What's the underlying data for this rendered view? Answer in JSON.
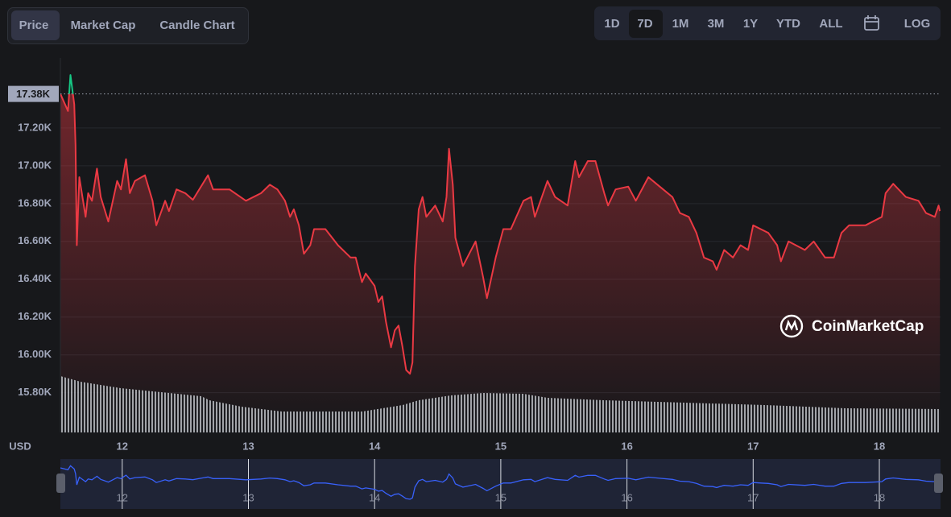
{
  "tabs": [
    "Price",
    "Market Cap",
    "Candle Chart"
  ],
  "ranges": [
    "1D",
    "7D",
    "1M",
    "3M",
    "1Y",
    "YTD",
    "ALL"
  ],
  "log_button": "LOG",
  "chart_data": {
    "type": "line",
    "watermark": "CoinMarketCap",
    "y_unit_label": "USD",
    "current_price": {
      "value": 17380,
      "label": "17.38K"
    },
    "xlim": [
      11.51,
      18.485
    ],
    "xticks": [
      12,
      13,
      14,
      15,
      16,
      17,
      18
    ],
    "ylim": [
      15590,
      17570
    ],
    "yticks": [
      {
        "value": 15800,
        "label": "15.80K"
      },
      {
        "value": 16000,
        "label": "16.00K"
      },
      {
        "value": 16200,
        "label": "16.20K"
      },
      {
        "value": 16400,
        "label": "16.40K"
      },
      {
        "value": 16600,
        "label": "16.60K"
      },
      {
        "value": 16800,
        "label": "16.80K"
      },
      {
        "value": 17000,
        "label": "17.00K"
      },
      {
        "value": 17200,
        "label": "17.20K"
      }
    ],
    "grid": true,
    "x": [
      11.51,
      11.57,
      11.59,
      11.62,
      11.63,
      11.64,
      11.66,
      11.71,
      11.73,
      11.76,
      11.8,
      11.83,
      11.89,
      11.96,
      11.99,
      12.03,
      12.06,
      12.1,
      12.18,
      12.24,
      12.27,
      12.34,
      12.37,
      12.43,
      12.5,
      12.56,
      12.68,
      12.72,
      12.85,
      12.98,
      13.1,
      13.17,
      13.23,
      13.29,
      13.33,
      13.36,
      13.4,
      13.44,
      13.49,
      13.52,
      13.61,
      13.71,
      13.81,
      13.85,
      13.9,
      13.93,
      14.0,
      14.03,
      14.06,
      14.09,
      14.13,
      14.16,
      14.19,
      14.22,
      14.25,
      14.28,
      14.3,
      14.32,
      14.35,
      14.38,
      14.41,
      14.48,
      14.54,
      14.57,
      14.59,
      14.62,
      14.64,
      14.7,
      14.8,
      14.86,
      14.89,
      14.96,
      15.02,
      15.08,
      15.18,
      15.24,
      15.27,
      15.37,
      15.43,
      15.53,
      15.59,
      15.62,
      15.69,
      15.75,
      15.82,
      15.85,
      15.91,
      16.01,
      16.07,
      16.17,
      16.26,
      16.36,
      16.42,
      16.49,
      16.55,
      16.61,
      16.68,
      16.71,
      16.77,
      16.84,
      16.9,
      16.96,
      17.0,
      17.06,
      17.12,
      17.19,
      17.22,
      17.28,
      17.41,
      17.48,
      17.57,
      17.64,
      17.7,
      17.76,
      17.89,
      18.02,
      18.05,
      18.11,
      18.21,
      18.31,
      18.37,
      18.44,
      18.47,
      18.48
    ],
    "series": [
      {
        "color": "#ea3943",
        "up_color": "#16c784",
        "nav_color": "#3861fb",
        "values": [
          17380,
          17290,
          17480,
          17325,
          17110,
          16580,
          16940,
          16730,
          16855,
          16815,
          16985,
          16835,
          16705,
          16920,
          16875,
          17035,
          16855,
          16920,
          16950,
          16815,
          16685,
          16815,
          16760,
          16875,
          16855,
          16820,
          16950,
          16875,
          16875,
          16815,
          16855,
          16900,
          16875,
          16815,
          16730,
          16770,
          16685,
          16535,
          16580,
          16665,
          16665,
          16580,
          16515,
          16515,
          16385,
          16430,
          16365,
          16280,
          16310,
          16175,
          16040,
          16130,
          16155,
          16045,
          15920,
          15900,
          15960,
          16470,
          16770,
          16835,
          16730,
          16790,
          16705,
          16835,
          17090,
          16900,
          16620,
          16470,
          16600,
          16410,
          16300,
          16515,
          16665,
          16665,
          16815,
          16835,
          16730,
          16920,
          16835,
          16790,
          17025,
          16940,
          17025,
          17025,
          16855,
          16790,
          16875,
          16890,
          16815,
          16940,
          16890,
          16835,
          16750,
          16730,
          16645,
          16515,
          16495,
          16450,
          16555,
          16515,
          16580,
          16555,
          16685,
          16665,
          16645,
          16580,
          16495,
          16600,
          16555,
          16600,
          16515,
          16515,
          16645,
          16685,
          16685,
          16730,
          16855,
          16905,
          16835,
          16815,
          16750,
          16730,
          16790,
          16760
        ]
      }
    ]
  }
}
